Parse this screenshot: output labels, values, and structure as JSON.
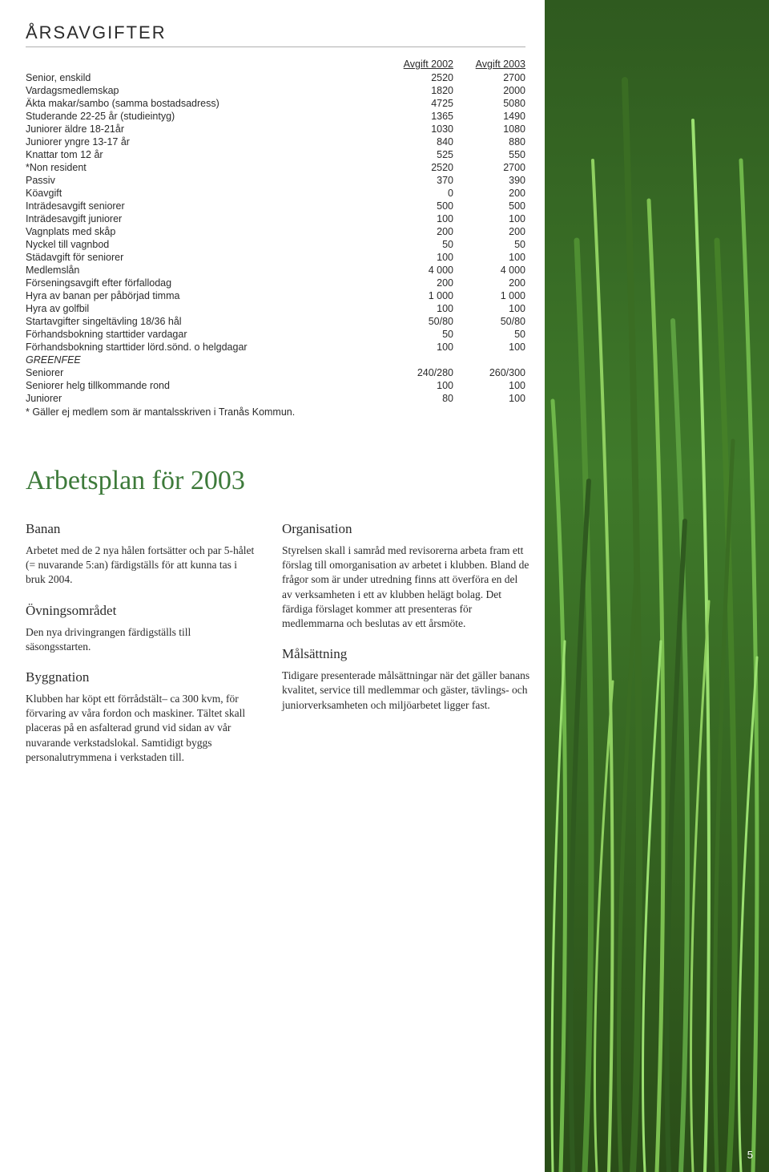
{
  "section_title": "ÅRSAVGIFTER",
  "fees": {
    "headers": [
      "",
      "Avgift 2002",
      "Avgift 2003"
    ],
    "rows": [
      [
        "Senior, enskild",
        "2520",
        "2700"
      ],
      [
        "Vardagsmedlemskap",
        "1820",
        "2000"
      ],
      [
        "Äkta makar/sambo (samma bostadsadress)",
        "4725",
        "5080"
      ],
      [
        "Studerande 22-25 år (studieintyg)",
        "1365",
        "1490"
      ],
      [
        "Juniorer äldre 18-21år",
        "1030",
        "1080"
      ],
      [
        "Juniorer yngre 13-17 år",
        "840",
        "880"
      ],
      [
        "Knattar tom 12 år",
        "525",
        "550"
      ],
      [
        "*Non resident",
        "2520",
        "2700"
      ],
      [
        "Passiv",
        "370",
        "390"
      ],
      [
        "Köavgift",
        "0",
        "200"
      ],
      [
        "Inträdesavgift seniorer",
        "500",
        "500"
      ],
      [
        "Inträdesavgift juniorer",
        "100",
        "100"
      ],
      [
        "Vagnplats med skåp",
        "200",
        "200"
      ],
      [
        "Nyckel till vagnbod",
        "50",
        "50"
      ],
      [
        "Städavgift för seniorer",
        "100",
        "100"
      ],
      [
        "Medlemslån",
        "4 000",
        "4 000"
      ],
      [
        "Förseningsavgift efter förfallodag",
        "200",
        "200"
      ],
      [
        "Hyra av banan per påbörjad timma",
        "1 000",
        "1 000"
      ],
      [
        "Hyra av golfbil",
        "100",
        "100"
      ],
      [
        "Startavgifter singeltävling 18/36 hål",
        "50/80",
        "50/80"
      ],
      [
        "Förhandsbokning starttider vardagar",
        "50",
        "50"
      ],
      [
        "Förhandsbokning starttider lörd.sönd. o helgdagar",
        "100",
        "100"
      ]
    ],
    "greenfee_label": "GREENFEE",
    "greenfee_rows": [
      [
        "Seniorer",
        "240/280",
        "260/300"
      ],
      [
        "Seniorer helg tillkommande rond",
        "100",
        "100"
      ],
      [
        "Juniorer",
        "80",
        "100"
      ]
    ],
    "footnote": "* Gäller ej medlem som är mantalsskriven i Tranås Kommun."
  },
  "plan": {
    "title": "Arbetsplan för 2003",
    "left": [
      {
        "heading": "Banan",
        "body": "Arbetet med de 2 nya hålen fortsätter och par 5-hålet (= nuvarande 5:an) färdigställs för att kunna tas i bruk 2004."
      },
      {
        "heading": "Övningsområdet",
        "body": "Den nya drivingrangen färdigställs till säsongsstarten."
      },
      {
        "heading": "Byggnation",
        "body": "Klubben har köpt ett förrådstält– ca 300 kvm, för förvaring av våra fordon och maskiner. Tältet skall placeras på en asfalterad grund vid sidan av vår nuvarande verkstadslokal. Samtidigt byggs personalutrymmena i verkstaden till."
      }
    ],
    "right": [
      {
        "heading": "Organisation",
        "body": "Styrelsen skall i samråd med revisorerna arbeta fram ett förslag till omorganisation av arbetet i klubben. Bland de frågor som är under utredning finns att överföra en del av verksamheten i ett av klubben helägt bolag. Det färdiga förslaget kommer att presenteras för medlemmarna och beslutas av ett årsmöte."
      },
      {
        "heading": "Målsättning",
        "body": "Tidigare presenterade målsättningar när det gäller banans kvalitet, service till medlemmar och gäster, tävlings- och juniorverksamheten och miljöarbetet ligger fast."
      }
    ]
  },
  "page_number": "5",
  "colors": {
    "heading_green": "#3d7a3a",
    "text": "#2b2b2b",
    "rule": "#b0b0b0"
  }
}
